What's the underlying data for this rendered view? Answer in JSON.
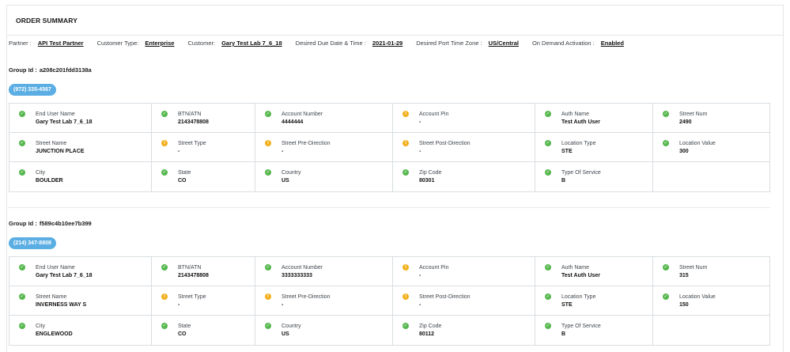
{
  "panel": {
    "title": "ORDER SUMMARY"
  },
  "meta": [
    {
      "label": "Partner :",
      "value": "API Test Partner"
    },
    {
      "label": "Customer Type:",
      "value": "Enterprise"
    },
    {
      "label": "Customer:",
      "value": "Gary Test Lab 7_6_18"
    },
    {
      "label": "Desired Due Date & Time :",
      "value": "2021-01-29"
    },
    {
      "label": "Desired Port Time Zone :",
      "value": "US/Central"
    },
    {
      "label": "On Demand Activation :",
      "value": "Enabled"
    }
  ],
  "groups": [
    {
      "group_id_label": "Group Id :",
      "group_id": "a208c201fdd3138a",
      "phone": "(972) 335-4567",
      "cells": [
        {
          "label": "End User Name",
          "value": "Gary Test Lab 7_6_18",
          "status": "ok"
        },
        {
          "label": "BTN/ATN",
          "value": "2143478808",
          "status": "ok"
        },
        {
          "label": "Account Number",
          "value": "4444444",
          "status": "ok"
        },
        {
          "label": "Account Pin",
          "value": "-",
          "status": "warn"
        },
        {
          "label": "Auth Name",
          "value": "Test Auth User",
          "status": "ok"
        },
        {
          "label": "Street Num",
          "value": "2490",
          "status": "ok"
        },
        {
          "label": "Street Name",
          "value": "JUNCTION PLACE",
          "status": "ok"
        },
        {
          "label": "Street Type",
          "value": "-",
          "status": "warn"
        },
        {
          "label": "Street Pre-Direction",
          "value": "-",
          "status": "warn"
        },
        {
          "label": "Street Post-Direction",
          "value": "-",
          "status": "warn"
        },
        {
          "label": "Location Type",
          "value": "STE",
          "status": "ok"
        },
        {
          "label": "Location Value",
          "value": "300",
          "status": "ok"
        },
        {
          "label": "City",
          "value": "BOULDER",
          "status": "ok"
        },
        {
          "label": "State",
          "value": "CO",
          "status": "ok"
        },
        {
          "label": "Country",
          "value": "US",
          "status": "ok"
        },
        {
          "label": "Zip Code",
          "value": "80301",
          "status": "ok"
        },
        {
          "label": "Type Of Service",
          "value": "B",
          "status": "ok"
        },
        {
          "label": "",
          "value": "",
          "status": ""
        }
      ]
    },
    {
      "group_id_label": "Group Id :",
      "group_id": "f589c4b10ee7b399",
      "phone": "(214) 347-8808",
      "cells": [
        {
          "label": "End User Name",
          "value": "Gary Test Lab 7_6_18",
          "status": "ok"
        },
        {
          "label": "BTN/ATN",
          "value": "2143478808",
          "status": "ok"
        },
        {
          "label": "Account Number",
          "value": "3333333333",
          "status": "ok"
        },
        {
          "label": "Account Pin",
          "value": "-",
          "status": "warn"
        },
        {
          "label": "Auth Name",
          "value": "Test Auth User",
          "status": "ok"
        },
        {
          "label": "Street Num",
          "value": "315",
          "status": "ok"
        },
        {
          "label": "Street Name",
          "value": "INVERNESS WAY S",
          "status": "ok"
        },
        {
          "label": "Street Type",
          "value": "-",
          "status": "warn"
        },
        {
          "label": "Street Pre-Direction",
          "value": "-",
          "status": "warn"
        },
        {
          "label": "Street Post-Direction",
          "value": "-",
          "status": "warn"
        },
        {
          "label": "Location Type",
          "value": "STE",
          "status": "ok"
        },
        {
          "label": "Location Value",
          "value": "150",
          "status": "ok"
        },
        {
          "label": "City",
          "value": "ENGLEWOOD",
          "status": "ok"
        },
        {
          "label": "State",
          "value": "CO",
          "status": "ok"
        },
        {
          "label": "Country",
          "value": "US",
          "status": "ok"
        },
        {
          "label": "Zip Code",
          "value": "80112",
          "status": "ok"
        },
        {
          "label": "Type Of Service",
          "value": "B",
          "status": "ok"
        },
        {
          "label": "",
          "value": "",
          "status": ""
        }
      ]
    }
  ],
  "icons": {
    "ok": "check-circle-icon",
    "warn": "exclamation-circle-icon"
  },
  "colors": {
    "ok": "#57b84f",
    "warn": "#f2b01e",
    "pill": "#5aaee3"
  }
}
